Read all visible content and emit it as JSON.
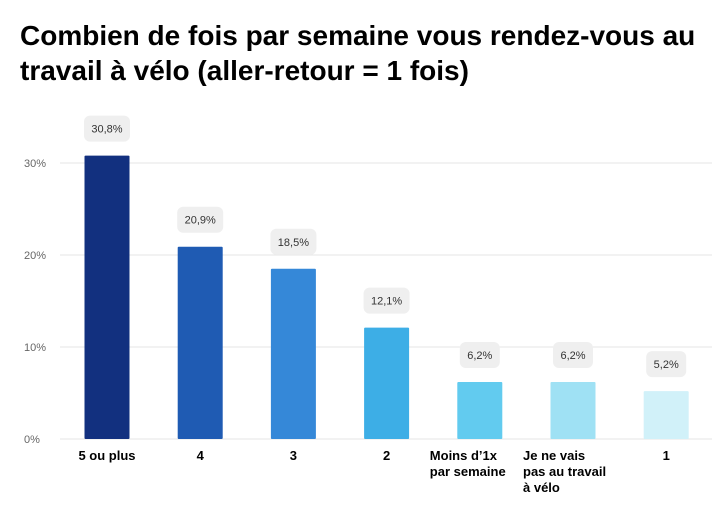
{
  "chart_data": {
    "type": "bar",
    "title": "Combien de fois par semaine vous rendez-vous au travail à vélo (aller-retour = 1 fois)",
    "xlabel": "",
    "ylabel": "",
    "categories": [
      [
        "5 ou plus"
      ],
      [
        "4"
      ],
      [
        "3"
      ],
      [
        "2"
      ],
      [
        "Moins d’1x",
        "par semaine"
      ],
      [
        "Je  ne vais",
        "pas  au travail",
        "à vélo"
      ],
      [
        "1"
      ]
    ],
    "values": [
      30.8,
      20.9,
      18.5,
      12.1,
      6.2,
      6.2,
      5.2
    ],
    "value_labels": [
      "30,8%",
      "20,9%",
      "18,5%",
      "12,1%",
      "6,2%",
      "6,2%",
      "5,2%"
    ],
    "colors": [
      "#12307f",
      "#1f5bb3",
      "#3588d8",
      "#3daee6",
      "#62cbef",
      "#9fe1f4",
      "#d1f1f9"
    ],
    "yticks": [
      0,
      10,
      20,
      30
    ],
    "ytick_labels": [
      "0%",
      "10%",
      "20%",
      "30%"
    ],
    "ylim": [
      0,
      30
    ],
    "grid": true,
    "legend": "none"
  }
}
